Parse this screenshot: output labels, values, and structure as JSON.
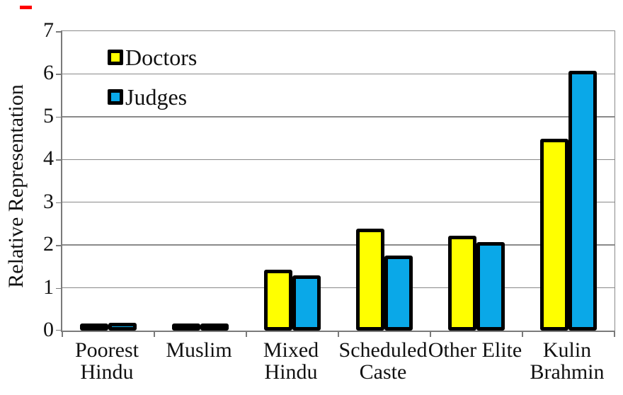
{
  "chart_data": {
    "type": "bar",
    "title": "",
    "xlabel": "",
    "ylabel": "Relative Representation",
    "ylim": [
      0,
      7
    ],
    "yticks": [
      0,
      1,
      2,
      3,
      4,
      5,
      6,
      7
    ],
    "grid": true,
    "legend_position": "top-left-inside",
    "categories": [
      "Poorest Hindu",
      "Muslim",
      "Mixed Hindu",
      "Scheduled Caste",
      "Other Elite",
      "Kulin Brahmin"
    ],
    "category_label_lines": [
      [
        "Poorest",
        "Hindu"
      ],
      [
        "Muslim"
      ],
      [
        "Mixed",
        "Hindu"
      ],
      [
        "Scheduled",
        "Caste"
      ],
      [
        "Other Elite"
      ],
      [
        "Kulin",
        "Brahmin"
      ]
    ],
    "series": [
      {
        "name": "Doctors",
        "color": "#FFFF00",
        "values": [
          0.08,
          0.13,
          1.42,
          2.38,
          2.21,
          4.48
        ]
      },
      {
        "name": "Judges",
        "color": "#0AA8E8",
        "values": [
          0.18,
          0.13,
          1.29,
          1.76,
          2.07,
          6.08
        ]
      }
    ]
  },
  "colors": {
    "bar_border": "#000000",
    "gridline": "#8a8a8a",
    "axis": "#7a7a7a",
    "red_mark": "#ff0000",
    "text": "#111111"
  }
}
